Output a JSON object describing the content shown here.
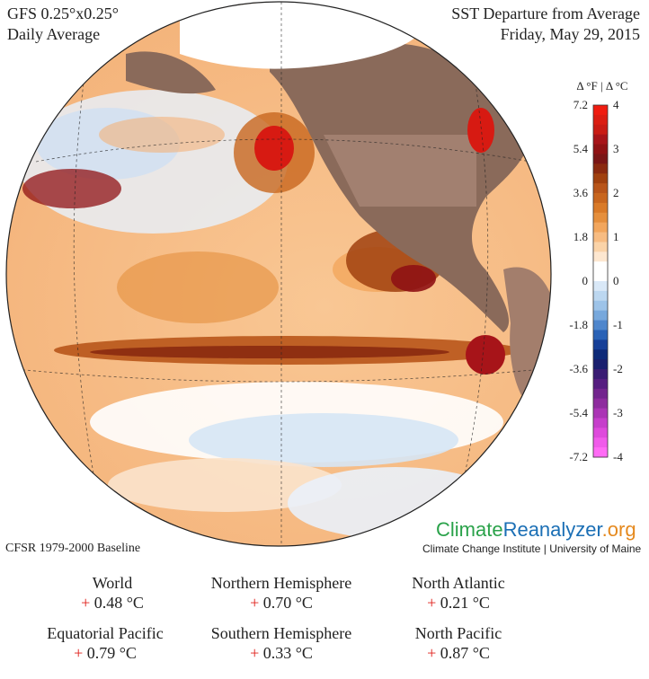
{
  "header": {
    "model": "GFS 0.25°x0.25°",
    "period": "Daily Average",
    "variable": "SST Departure from Average",
    "date": "Friday, May 29, 2015"
  },
  "legend": {
    "units_label": "Δ °F  |  Δ °C",
    "fahrenheit_ticks": [
      "7.2",
      "5.4",
      "3.6",
      "1.8",
      "0",
      "-1.8",
      "-3.6",
      "-5.4",
      "-7.2"
    ],
    "celsius_ticks": [
      "4",
      "3",
      "2",
      "1",
      "0",
      "-1",
      "-2",
      "-3",
      "-4"
    ],
    "colors_top_to_bottom": [
      "#f01c10",
      "#db1d12",
      "#c91b14",
      "#a71419",
      "#8f1214",
      "#7a1616",
      "#8a2a10",
      "#a0410f",
      "#b8551a",
      "#c8661e",
      "#d97a28",
      "#e58f3d",
      "#f2a65d",
      "#f7bc82",
      "#fad3a8",
      "#fde7d0",
      "#ffffff",
      "#ffffff",
      "#d9e8f7",
      "#bcd7f0",
      "#9dc3e8",
      "#77a8dc",
      "#4f86cc",
      "#2a62b6",
      "#163f97",
      "#0d2a78",
      "#1a1f6e",
      "#3a1c73",
      "#561e80",
      "#73258e",
      "#8e2c9e",
      "#ab35b5",
      "#c63fcb",
      "#de4adc",
      "#f05bea",
      "#ff6bf5"
    ]
  },
  "baseline": "CFSR 1979-2000 Baseline",
  "branding": {
    "part1": "Climate",
    "part2": "Reanalyzer",
    "part3": ".org",
    "subtitle": "Climate Change Institute | University of Maine"
  },
  "stats": [
    {
      "label": "World",
      "sign": "+",
      "value": "0.48 °C"
    },
    {
      "label": "Northern Hemisphere",
      "sign": "+",
      "value": "0.70 °C"
    },
    {
      "label": "North Atlantic",
      "sign": "+",
      "value": "0.21 °C"
    },
    {
      "label": "Equatorial Pacific",
      "sign": "+",
      "value": "0.79 °C"
    },
    {
      "label": "Southern Hemisphere",
      "sign": "+",
      "value": "0.33 °C"
    },
    {
      "label": "North Pacific",
      "sign": "+",
      "value": "0.87 °C"
    }
  ]
}
